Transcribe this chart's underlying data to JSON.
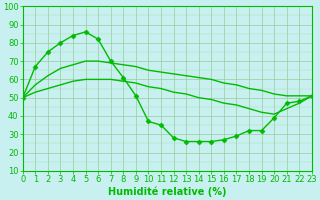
{
  "line1_x": [
    0,
    1,
    2,
    3,
    4,
    5,
    6,
    7,
    8,
    9,
    10,
    11,
    12,
    13,
    14,
    15,
    16,
    17,
    18,
    19,
    20,
    21,
    22,
    23
  ],
  "line1_y": [
    50,
    67,
    75,
    80,
    84,
    86,
    82,
    70,
    61,
    51,
    37,
    35,
    28,
    26,
    26,
    26,
    27,
    29,
    32,
    32,
    39,
    47,
    48,
    51
  ],
  "line2_x": [
    0,
    1,
    2,
    3,
    4,
    5,
    6,
    7,
    8,
    9,
    10,
    11,
    12,
    13,
    14,
    15,
    16,
    17,
    18,
    19,
    20,
    21,
    22,
    23
  ],
  "line2_y": [
    50,
    57,
    62,
    66,
    68,
    70,
    70,
    69,
    68,
    67,
    65,
    64,
    63,
    62,
    61,
    60,
    58,
    57,
    55,
    54,
    52,
    51,
    51,
    51
  ],
  "line3_x": [
    0,
    1,
    2,
    3,
    4,
    5,
    6,
    7,
    8,
    9,
    10,
    11,
    12,
    13,
    14,
    15,
    16,
    17,
    18,
    19,
    20,
    21,
    22,
    23
  ],
  "line3_y": [
    50,
    53,
    55,
    57,
    59,
    60,
    60,
    60,
    59,
    58,
    56,
    55,
    53,
    52,
    50,
    49,
    47,
    46,
    44,
    42,
    41,
    44,
    47,
    51
  ],
  "color": "#00bb00",
  "bg_color": "#c8f0f0",
  "grid_major_color": "#99cc99",
  "grid_minor_color": "#aaddaa",
  "xlabel": "Humidité relative (%)",
  "ylim": [
    10,
    100
  ],
  "xlim": [
    0,
    23
  ],
  "yticks": [
    10,
    20,
    30,
    40,
    50,
    60,
    70,
    80,
    90,
    100
  ],
  "xticks": [
    0,
    1,
    2,
    3,
    4,
    5,
    6,
    7,
    8,
    9,
    10,
    11,
    12,
    13,
    14,
    15,
    16,
    17,
    18,
    19,
    20,
    21,
    22,
    23
  ],
  "marker": "D",
  "markersize": 2.5,
  "linewidth": 1.0,
  "xlabel_fontsize": 7,
  "tick_fontsize": 6
}
